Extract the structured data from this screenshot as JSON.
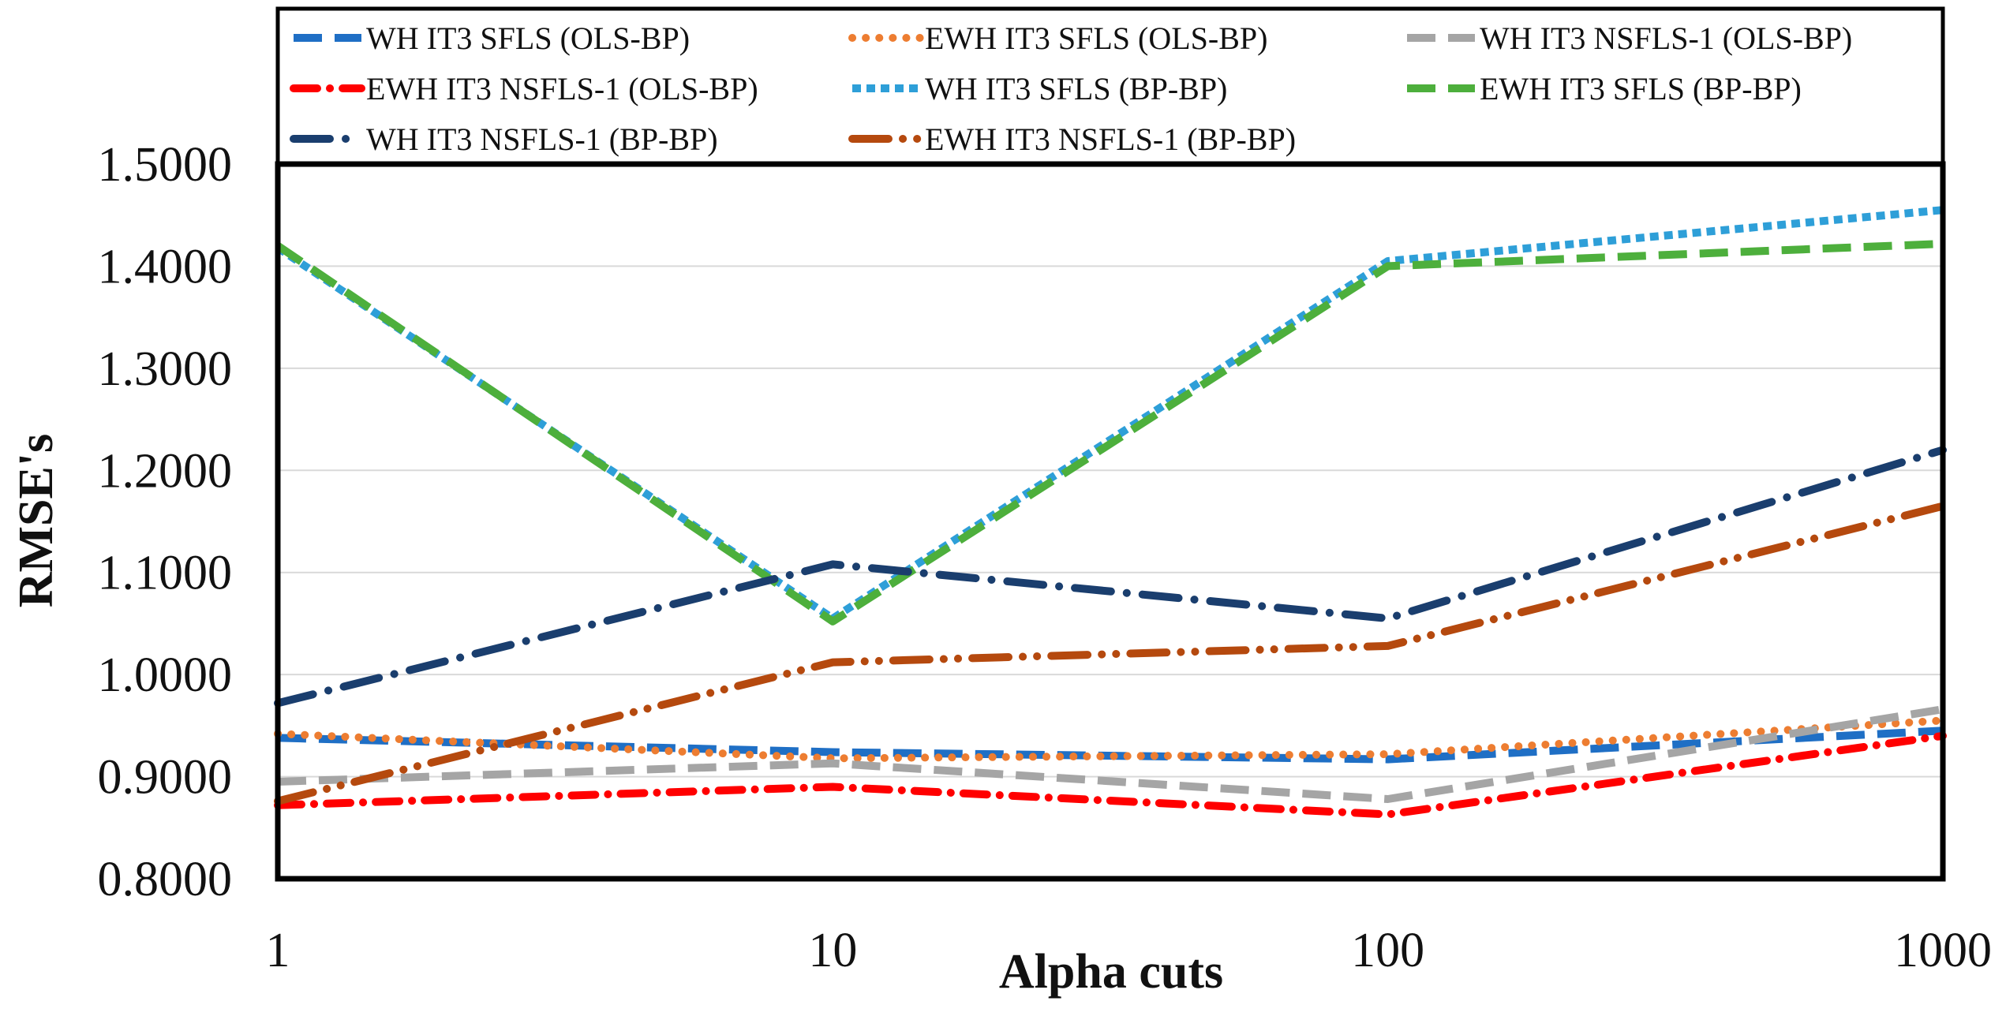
{
  "chart_data": {
    "type": "line",
    "title": "",
    "xlabel": "Alpha cuts",
    "ylabel": "RMSE's",
    "xscale": "log",
    "x": [
      1,
      10,
      100,
      1000
    ],
    "x_tick_labels": [
      "1",
      "10",
      "100",
      "1000"
    ],
    "ylim": [
      0.8,
      1.5
    ],
    "y_tick_labels": [
      "0.8000",
      "0.9000",
      "1.0000",
      "1.1000",
      "1.2000",
      "1.3000",
      "1.4000",
      "1.5000"
    ],
    "grid": "horizontal",
    "legend_position": "top",
    "series": [
      {
        "name": "WH IT3 SFLS (OLS-BP)",
        "color": "#1f6fc5",
        "dash": "longdash",
        "values": [
          0.938,
          0.924,
          0.917,
          0.945
        ]
      },
      {
        "name": "EWH IT3 SFLS (OLS-BP)",
        "color": "#ed7d31",
        "dash": "dot",
        "values": [
          0.942,
          0.918,
          0.922,
          0.955
        ]
      },
      {
        "name": "WH IT3 NSFLS-1 (OLS-BP)",
        "color": "#a5a5a5",
        "dash": "longdash",
        "values": [
          0.895,
          0.913,
          0.878,
          0.966
        ]
      },
      {
        "name": "EWH IT3 NSFLS-1 (OLS-BP)",
        "color": "#ff0000",
        "dash": "dashdot",
        "values": [
          0.872,
          0.89,
          0.863,
          0.94
        ]
      },
      {
        "name": "WH IT3 SFLS (BP-BP)",
        "color": "#2e9fd8",
        "dash": "squaredot",
        "values": [
          1.418,
          1.055,
          1.405,
          1.455
        ]
      },
      {
        "name": "EWH IT3 SFLS (BP-BP)",
        "color": "#4daf3c",
        "dash": "longdash",
        "values": [
          1.42,
          1.052,
          1.4,
          1.422
        ]
      },
      {
        "name": "WH IT3 NSFLS-1 (BP-BP)",
        "color": "#1a3e6e",
        "dash": "longdashdot",
        "values": [
          0.972,
          1.108,
          1.055,
          1.22
        ]
      },
      {
        "name": "EWH IT3 NSFLS-1 (BP-BP)",
        "color": "#b5490e",
        "dash": "longdashdotdot",
        "values": [
          0.876,
          1.012,
          1.028,
          1.165
        ]
      }
    ]
  }
}
